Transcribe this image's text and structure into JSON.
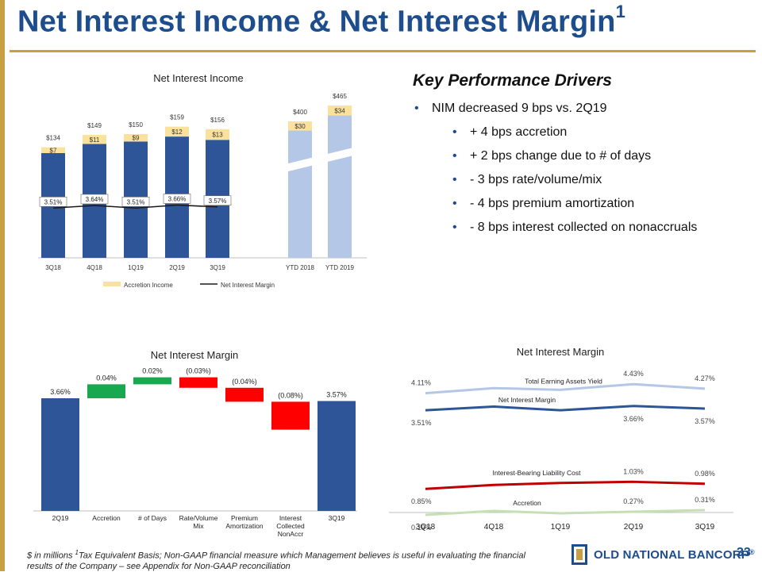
{
  "header": {
    "title": "Net Interest Income & Net Interest Margin",
    "title_sup": "1"
  },
  "drivers": {
    "heading": "Key Performance Drivers",
    "items": [
      {
        "level": 1,
        "text": "NIM decreased 9 bps vs. 2Q19"
      },
      {
        "level": 2,
        "text": "+ 4 bps accretion"
      },
      {
        "level": 2,
        "text": "+ 2 bps change due to # of days"
      },
      {
        "level": 2,
        "text": "- 3 bps rate/volume/mix"
      },
      {
        "level": 2,
        "text": "- 4 bps premium amortization"
      },
      {
        "level": 2,
        "text": "- 8 bps interest collected on nonaccruals"
      }
    ]
  },
  "chart_data": [
    {
      "type": "bar",
      "title": "Net Interest Income",
      "categories": [
        "3Q18",
        "4Q18",
        "1Q19",
        "2Q19",
        "3Q19",
        "YTD 2018",
        "YTD 2019"
      ],
      "quarterly": {
        "totals": [
          134,
          149,
          150,
          159,
          156
        ],
        "total_labels": [
          "$134",
          "$149",
          "$150",
          "$159",
          "$156"
        ],
        "accretion": [
          7,
          11,
          9,
          12,
          13
        ],
        "accretion_labels": [
          "$7",
          "$11",
          "$9",
          "$12",
          "$13"
        ],
        "nim": [
          3.51,
          3.64,
          3.51,
          3.66,
          3.57
        ],
        "nim_labels": [
          "3.51%",
          "3.64%",
          "3.51%",
          "3.66%",
          "3.57%"
        ]
      },
      "ytd": {
        "totals": [
          400,
          465
        ],
        "total_labels": [
          "$400",
          "$465"
        ],
        "accretion": [
          30,
          34
        ],
        "accretion_labels": [
          "$30",
          "$34"
        ]
      },
      "legend": [
        "Accretion Income",
        "Net Interest Margin"
      ],
      "colors": {
        "core": "#2e5597",
        "accretion": "#fbe29c",
        "ytd": "#b4c7e7",
        "nim": "#1a1a1a"
      },
      "ylim": [
        0,
        170
      ]
    },
    {
      "type": "bar",
      "subtype": "waterfall",
      "title": "Net Interest Margin",
      "categories": [
        "2Q19",
        "Accretion",
        "# of Days",
        "Rate/Volume Mix",
        "Premium Amortization",
        "Interest Collected NonAccr",
        "3Q19"
      ],
      "category_lines": [
        [
          "2Q19"
        ],
        [
          "Accretion"
        ],
        [
          "# of Days"
        ],
        [
          "Rate/Volume",
          "Mix"
        ],
        [
          "Premium",
          "Amortization"
        ],
        [
          "Interest",
          "Collected",
          "NonAccr"
        ],
        [
          "3Q19"
        ]
      ],
      "values": [
        3.66,
        0.04,
        0.02,
        -0.03,
        -0.04,
        -0.08,
        3.57
      ],
      "labels": [
        "3.66%",
        "0.04%",
        "0.02%",
        "(0.03%)",
        "(0.04%)",
        "(0.08%)",
        "3.57%"
      ],
      "colors": {
        "total": "#2e5597",
        "up": "#18a84f",
        "down": "#ff0000"
      }
    },
    {
      "type": "line",
      "title": "Net Interest Margin",
      "categories": [
        "3Q18",
        "4Q18",
        "1Q19",
        "2Q19",
        "3Q19"
      ],
      "series": [
        {
          "name": "Total Earning Assets Yield",
          "values": [
            4.11,
            4.29,
            4.23,
            4.43,
            4.27
          ],
          "labels": [
            "4.11%",
            "",
            "",
            "4.43%",
            "4.27%"
          ],
          "color": "#b4c7e7"
        },
        {
          "name": "Net Interest Margin",
          "values": [
            3.51,
            3.64,
            3.51,
            3.66,
            3.57
          ],
          "labels": [
            "3.51%",
            "",
            "",
            "3.66%",
            "3.57%"
          ],
          "color": "#2e5597"
        },
        {
          "name": "Interest-Bearing Liability Cost",
          "values": [
            0.85,
            0.95,
            1.0,
            1.03,
            0.98
          ],
          "labels": [
            "0.85%",
            "",
            "",
            "1.03%",
            "0.98%"
          ],
          "color": "#c00000"
        },
        {
          "name": "Accretion",
          "values": [
            0.19,
            0.29,
            0.23,
            0.27,
            0.31
          ],
          "labels": [
            "0.19%",
            "",
            "",
            "0.27%",
            "0.31%"
          ],
          "color": "#c5e0b4"
        }
      ]
    }
  ],
  "footer": {
    "pre": "$ in millions",
    "sup": "1",
    "text": "Tax Equivalent Basis; Non-GAAP financial measure which Management believes is useful in evaluating the financial results of the Company – see Appendix for Non-GAAP reconciliation"
  },
  "brand": {
    "logo_text": "OLD NATIONAL BANCORP",
    "trademark": "®",
    "page_number": "33"
  }
}
